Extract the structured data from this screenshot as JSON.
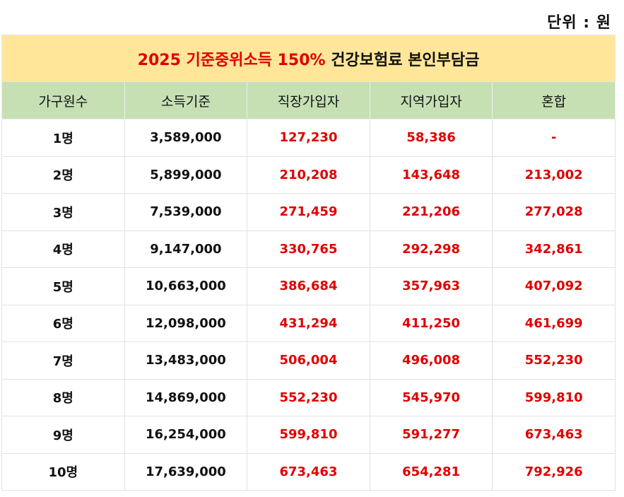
{
  "unit_label": "단위 : 원",
  "title": {
    "red_part": "2025 기준중위소득 150%",
    "dark_part": " 건강보험료 본인부담금"
  },
  "columns": [
    "가구원수",
    "소득기준",
    "직장가입자",
    "지역가입자",
    "혼합"
  ],
  "rows": [
    [
      "1명",
      "3,589,000",
      "127,230",
      "58,386",
      "-"
    ],
    [
      "2명",
      "5,899,000",
      "210,208",
      "143,648",
      "213,002"
    ],
    [
      "3명",
      "7,539,000",
      "271,459",
      "221,206",
      "277,028"
    ],
    [
      "4명",
      "9,147,000",
      "330,765",
      "292,298",
      "342,861"
    ],
    [
      "5명",
      "10,663,000",
      "386,684",
      "357,963",
      "407,092"
    ],
    [
      "6명",
      "12,098,000",
      "431,294",
      "411,250",
      "461,699"
    ],
    [
      "7명",
      "13,483,000",
      "506,004",
      "496,008",
      "552,230"
    ],
    [
      "8명",
      "14,869,000",
      "552,230",
      "545,970",
      "599,810"
    ],
    [
      "9명",
      "16,254,000",
      "599,810",
      "591,277",
      "673,463"
    ],
    [
      "10명",
      "17,639,000",
      "673,463",
      "654,281",
      "792,926"
    ]
  ],
  "colors": {
    "title_background": "#ffe699",
    "header_background": "#c6e0b4",
    "highlight_text": "#e00000"
  }
}
